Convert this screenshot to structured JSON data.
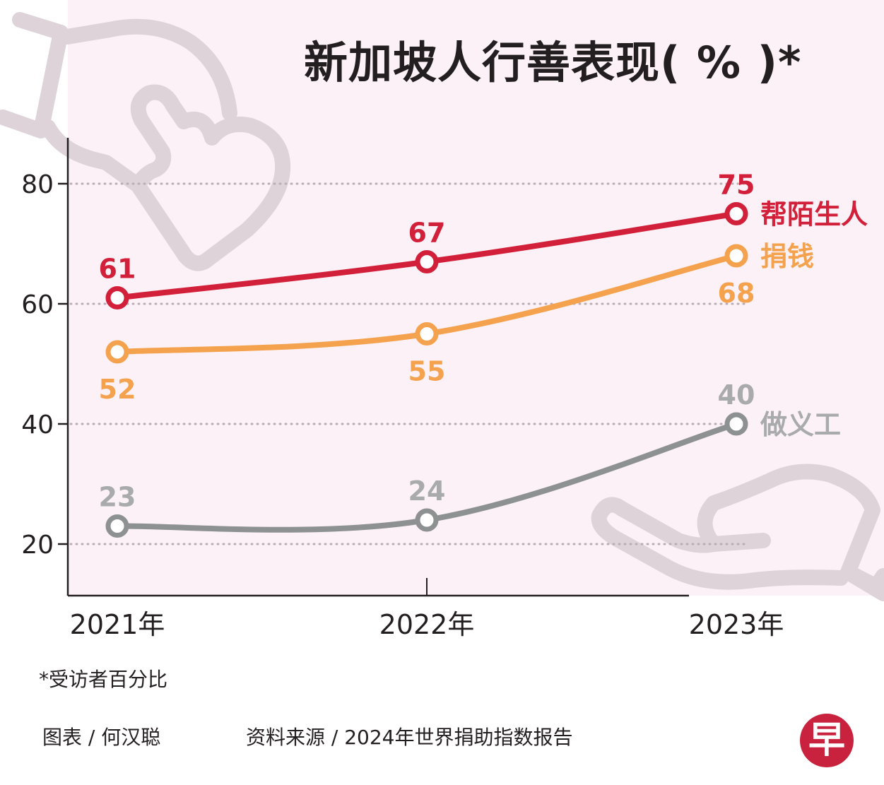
{
  "header": {
    "title": "新加坡人行善表现( % )*"
  },
  "footer": {
    "footnote": "*受访者百分比",
    "credit": "图表 / 何汉聪",
    "source": "资料来源 / 2024年世界捐助指数报告",
    "logo_char": "早"
  },
  "colors": {
    "background_panel": "#fcf1f6",
    "gridline": "#b9aeb4",
    "axis": "#231f20",
    "decoration": "#ddd3d9"
  },
  "chart_data": {
    "type": "line",
    "title": "新加坡人行善表现( % )*",
    "xlabel": "",
    "ylabel": "",
    "categories": [
      "2021年",
      "2022年",
      "2023年"
    ],
    "ylim": [
      12,
      88
    ],
    "yticks": [
      20,
      40,
      60,
      80
    ],
    "grid": true,
    "gridstyle": "dotted horizontal",
    "legend": "inline-right",
    "series": [
      {
        "name": "帮陌生人",
        "color": "#d3203a",
        "values": [
          61,
          67,
          75
        ],
        "label_position": "above"
      },
      {
        "name": "捐钱",
        "color": "#f4a24e",
        "values": [
          52,
          55,
          68
        ],
        "label_position": "below"
      },
      {
        "name": "做义工",
        "color": "#8e9192",
        "label_color": "#a8aaab",
        "values": [
          23,
          24,
          40
        ],
        "label_position": "above"
      }
    ],
    "footnote": "*受访者百分比"
  }
}
